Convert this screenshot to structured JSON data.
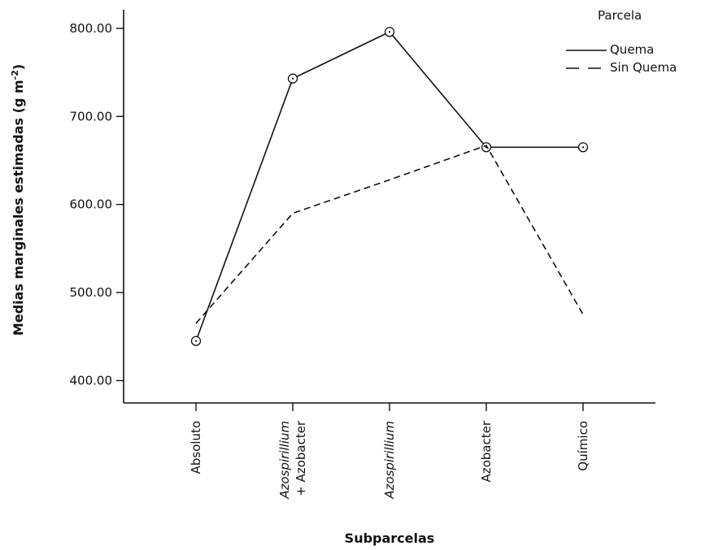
{
  "chart_data": {
    "type": "line",
    "xlabel": "Subparcelas",
    "ylabel": "Medias marginales estimadas (g m",
    "ylabel_sup": "-2",
    "ylabel_close": ")",
    "categories": [
      {
        "lines": [
          {
            "text": "Absoluto",
            "italic": false
          }
        ]
      },
      {
        "lines": [
          {
            "text": "Azospirillium",
            "italic": true
          },
          {
            "text": "+ Azobacter",
            "italic": false
          }
        ]
      },
      {
        "lines": [
          {
            "text": "Azospirillium",
            "italic": true
          }
        ]
      },
      {
        "lines": [
          {
            "text": "Azobacter",
            "italic": false
          }
        ]
      },
      {
        "lines": [
          {
            "text": "Químico",
            "italic": false
          }
        ]
      }
    ],
    "ylim": [
      380,
      815
    ],
    "yticks": [
      400,
      500,
      600,
      700,
      800
    ],
    "ytick_labels": [
      "400.00",
      "500.00",
      "600.00",
      "700.00",
      "800.00"
    ],
    "legend": {
      "title": "Parcela",
      "position": "top-right"
    },
    "series": [
      {
        "name": "Quema",
        "style": "solid",
        "markers": true,
        "values": [
          445,
          743,
          796,
          665,
          665
        ]
      },
      {
        "name": "Sin Quema",
        "style": "dashed",
        "markers": false,
        "values": [
          465,
          590,
          628,
          667,
          475
        ]
      }
    ],
    "grid": false
  }
}
